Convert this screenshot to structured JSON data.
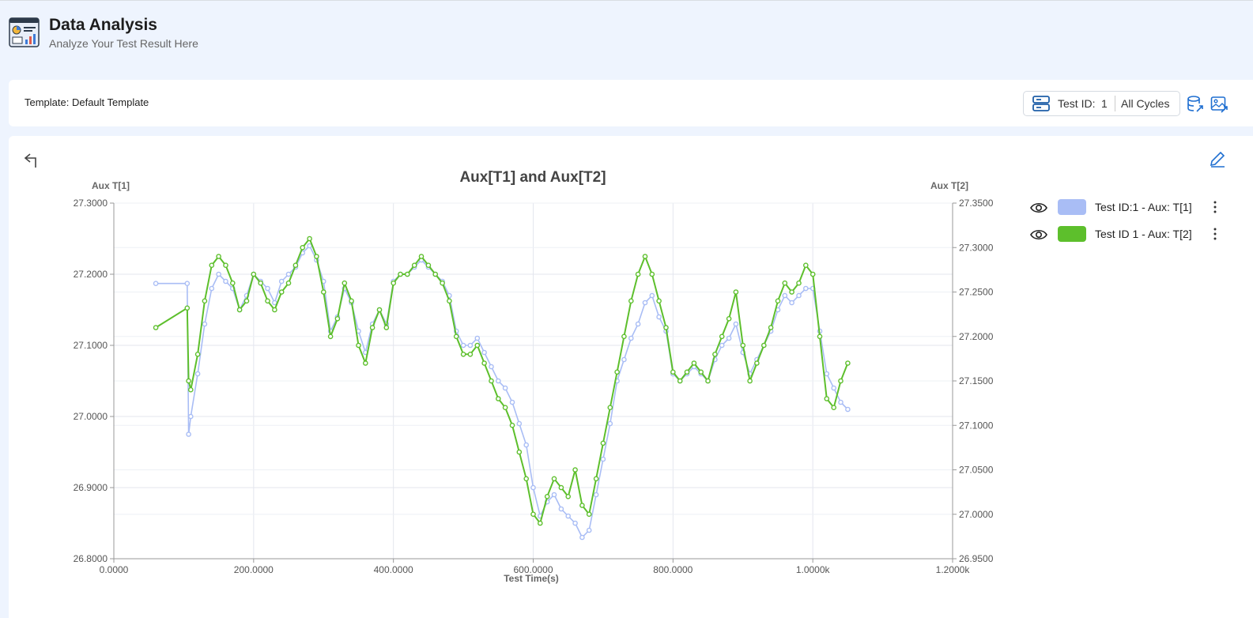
{
  "header": {
    "title": "Data Analysis",
    "subtitle": "Analyze Your Test Result Here",
    "icon": "analytics-dashboard-icon"
  },
  "toolbar": {
    "template_label": "Template: Default Template",
    "test_id_label": "Test ID:",
    "test_id_value": "1",
    "cycles_label": "All Cycles",
    "icons": [
      "server-icon",
      "database-export-icon",
      "image-export-icon"
    ]
  },
  "legend": [
    {
      "label": "Test ID:1 - Aux: T[1]",
      "color": "#a9bdf5"
    },
    {
      "label": "Test ID 1 - Aux: T[2]",
      "color": "#5dbf2c"
    }
  ],
  "chart_data": {
    "type": "line",
    "title": "Aux[T1] and Aux[T2]",
    "xlabel": "Test Time(s)",
    "ylabel": "Aux T[1]",
    "y2label": "Aux T[2]",
    "xlim": [
      0,
      1200
    ],
    "ylim": [
      26.8,
      27.3
    ],
    "y2lim": [
      26.95,
      27.35
    ],
    "x_ticks": [
      "0.0000",
      "200.0000",
      "400.0000",
      "600.0000",
      "800.0000",
      "1.0000k",
      "1.2000k"
    ],
    "y_ticks": [
      "26.8000",
      "26.9000",
      "27.0000",
      "27.1000",
      "27.2000",
      "27.3000"
    ],
    "y2_ticks": [
      "26.9500",
      "27.0000",
      "27.0500",
      "27.1000",
      "27.1500",
      "27.2000",
      "27.2500",
      "27.3000",
      "27.3500"
    ],
    "grid": true,
    "series": [
      {
        "name": "Test ID:1 - Aux: T[1]",
        "axis": "left",
        "color": "#a9bdf5",
        "x": [
          60,
          105,
          107,
          110,
          120,
          130,
          140,
          150,
          160,
          170,
          180,
          190,
          200,
          210,
          220,
          230,
          240,
          250,
          260,
          270,
          280,
          290,
          300,
          310,
          320,
          330,
          340,
          350,
          360,
          370,
          380,
          390,
          400,
          410,
          420,
          430,
          440,
          450,
          460,
          470,
          480,
          490,
          500,
          510,
          520,
          530,
          540,
          550,
          560,
          570,
          580,
          590,
          600,
          610,
          620,
          630,
          640,
          650,
          660,
          670,
          680,
          690,
          700,
          710,
          720,
          730,
          740,
          750,
          760,
          770,
          780,
          790,
          800,
          810,
          820,
          830,
          840,
          850,
          860,
          870,
          880,
          890,
          900,
          910,
          920,
          930,
          940,
          950,
          960,
          970,
          980,
          990,
          1000,
          1010,
          1020,
          1030,
          1040,
          1050
        ],
        "y": [
          27.187,
          27.187,
          26.975,
          27.0,
          27.06,
          27.13,
          27.18,
          27.2,
          27.19,
          27.18,
          27.15,
          27.17,
          27.2,
          27.19,
          27.18,
          27.16,
          27.19,
          27.2,
          27.21,
          27.23,
          27.24,
          27.22,
          27.19,
          27.12,
          27.14,
          27.18,
          27.16,
          27.12,
          27.09,
          27.13,
          27.15,
          27.13,
          27.19,
          27.2,
          27.2,
          27.21,
          27.22,
          27.21,
          27.2,
          27.19,
          27.17,
          27.12,
          27.1,
          27.1,
          27.11,
          27.09,
          27.07,
          27.05,
          27.04,
          27.02,
          26.99,
          26.96,
          26.9,
          26.86,
          26.88,
          26.89,
          26.87,
          26.86,
          26.85,
          26.83,
          26.84,
          26.89,
          26.94,
          26.99,
          27.05,
          27.08,
          27.11,
          27.13,
          27.16,
          27.17,
          27.14,
          27.12,
          27.06,
          27.05,
          27.06,
          27.07,
          27.06,
          27.05,
          27.08,
          27.1,
          27.11,
          27.13,
          27.09,
          27.06,
          27.08,
          27.1,
          27.12,
          27.15,
          27.17,
          27.16,
          27.17,
          27.18,
          27.18,
          27.12,
          27.06,
          27.04,
          27.02,
          27.01
        ]
      },
      {
        "name": "Test ID 1 - Aux: T[2]",
        "axis": "right",
        "color": "#5dbf2c",
        "x": [
          60,
          105,
          107,
          110,
          120,
          130,
          140,
          150,
          160,
          170,
          180,
          190,
          200,
          210,
          220,
          230,
          240,
          250,
          260,
          270,
          280,
          290,
          300,
          310,
          320,
          330,
          340,
          350,
          360,
          370,
          380,
          390,
          400,
          410,
          420,
          430,
          440,
          450,
          460,
          470,
          480,
          490,
          500,
          510,
          520,
          530,
          540,
          550,
          560,
          570,
          580,
          590,
          600,
          610,
          620,
          630,
          640,
          650,
          660,
          670,
          680,
          690,
          700,
          710,
          720,
          730,
          740,
          750,
          760,
          770,
          780,
          790,
          800,
          810,
          820,
          830,
          840,
          850,
          860,
          870,
          880,
          890,
          900,
          910,
          920,
          930,
          940,
          950,
          960,
          970,
          980,
          990,
          1000,
          1010,
          1020,
          1030,
          1040,
          1050
        ],
        "y": [
          27.21,
          27.232,
          27.15,
          27.14,
          27.18,
          27.24,
          27.28,
          27.29,
          27.28,
          27.26,
          27.23,
          27.24,
          27.27,
          27.26,
          27.24,
          27.23,
          27.25,
          27.26,
          27.28,
          27.3,
          27.31,
          27.29,
          27.25,
          27.2,
          27.22,
          27.26,
          27.24,
          27.19,
          27.17,
          27.21,
          27.23,
          27.21,
          27.26,
          27.27,
          27.27,
          27.28,
          27.29,
          27.28,
          27.27,
          27.26,
          27.24,
          27.2,
          27.18,
          27.18,
          27.19,
          27.17,
          27.15,
          27.13,
          27.12,
          27.1,
          27.07,
          27.04,
          27.0,
          26.99,
          27.02,
          27.04,
          27.03,
          27.02,
          27.05,
          27.01,
          27.0,
          27.04,
          27.08,
          27.12,
          27.16,
          27.2,
          27.24,
          27.27,
          27.29,
          27.27,
          27.24,
          27.21,
          27.16,
          27.15,
          27.16,
          27.17,
          27.16,
          27.15,
          27.18,
          27.2,
          27.22,
          27.25,
          27.19,
          27.15,
          27.17,
          27.19,
          27.21,
          27.24,
          27.26,
          27.25,
          27.26,
          27.28,
          27.27,
          27.2,
          27.13,
          27.12,
          27.15,
          27.17
        ]
      }
    ]
  }
}
